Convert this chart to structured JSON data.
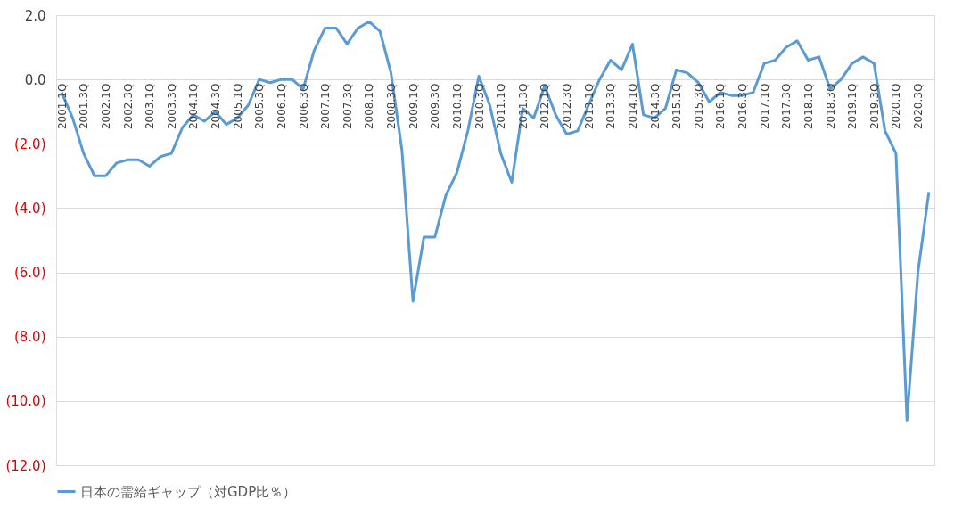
{
  "chart_data": {
    "type": "line",
    "categories": [
      "2001.1Q",
      null,
      "2001.3Q",
      null,
      "2002.1Q",
      null,
      "2002.3Q",
      null,
      "2003.1Q",
      null,
      "2003.3Q",
      null,
      "2004.1Q",
      null,
      "2004.3Q",
      null,
      "2005.1Q",
      null,
      "2005.3Q",
      null,
      "2006.1Q",
      null,
      "2006.3Q",
      null,
      "2007.1Q",
      null,
      "2007.3Q",
      null,
      "2008.1Q",
      null,
      "2008.3Q",
      null,
      "2009.1Q",
      null,
      "2009.3Q",
      null,
      "2010.1Q",
      null,
      "2010.3Q",
      null,
      "2011.1Q",
      null,
      "2011.3Q",
      null,
      "2012.1Q",
      null,
      "2012.3Q",
      null,
      "2013.1Q",
      null,
      "2013.3Q",
      null,
      "2014.1Q",
      null,
      "2014.3Q",
      null,
      "2015.1Q",
      null,
      "2015.3Q",
      null,
      "2016.1Q",
      null,
      "2016.3Q",
      null,
      "2017.1Q",
      null,
      "2017.3Q",
      null,
      "2018.1Q",
      null,
      "2018.3Q",
      null,
      "2019.1Q",
      null,
      "2019.3Q",
      null,
      "2020.1Q",
      null,
      "2020.3Q",
      null
    ],
    "series": [
      {
        "name": "日本の需給ギャップ（対GDP比％）",
        "color": "#5b9bd5",
        "values": [
          -0.4,
          -1.2,
          -2.3,
          -3.0,
          -3.0,
          -2.6,
          -2.5,
          -2.5,
          -2.7,
          -2.4,
          -2.3,
          -1.5,
          -1.1,
          -1.3,
          -1.0,
          -1.4,
          -1.2,
          -0.8,
          0.0,
          -0.1,
          0.0,
          0.0,
          -0.3,
          0.9,
          1.6,
          1.6,
          1.1,
          1.6,
          1.8,
          1.5,
          0.2,
          -2.2,
          -6.9,
          -4.9,
          -4.9,
          -3.6,
          -2.9,
          -1.6,
          0.1,
          -0.8,
          -2.3,
          -3.2,
          -0.9,
          -1.2,
          -0.2,
          -1.1,
          -1.7,
          -1.6,
          -0.8,
          0.0,
          0.6,
          0.3,
          1.1,
          -1.1,
          -1.2,
          -0.9,
          0.3,
          0.2,
          -0.1,
          -0.7,
          -0.4,
          -0.5,
          -0.5,
          -0.4,
          0.5,
          0.6,
          1.0,
          1.2,
          0.6,
          0.7,
          -0.3,
          0.0,
          0.5,
          0.7,
          0.5,
          -1.6,
          -2.3,
          -10.6,
          -6.0,
          -3.5
        ]
      }
    ],
    "ylim": [
      -12,
      2
    ],
    "yticks": [
      {
        "value": -12,
        "label": "(12.0)"
      },
      {
        "value": -10,
        "label": "(10.0)"
      },
      {
        "value": -8,
        "label": "(8.0)"
      },
      {
        "value": -6,
        "label": "(6.0)"
      },
      {
        "value": -4,
        "label": "(4.0)"
      },
      {
        "value": -2,
        "label": "(2.0)"
      },
      {
        "value": 0,
        "label": "0.0"
      },
      {
        "value": 2,
        "label": "2.0"
      }
    ],
    "grid": "y",
    "legend": "bottom",
    "marker": "none",
    "line_style": "solid"
  }
}
